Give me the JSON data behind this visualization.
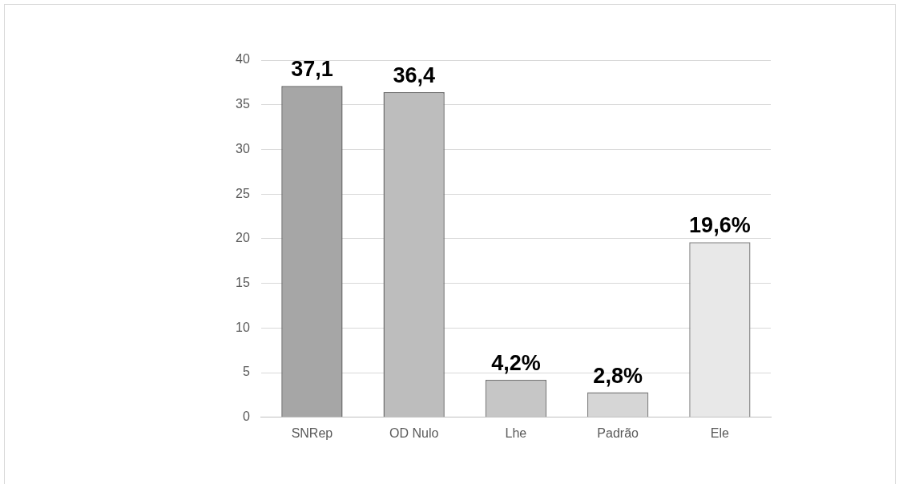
{
  "chart_data": {
    "type": "bar",
    "categories": [
      "SNRep",
      "OD Nulo",
      "Lhe",
      "Padrão",
      "Ele"
    ],
    "values": [
      37.1,
      36.4,
      4.2,
      2.8,
      19.6
    ],
    "colors": [
      "#a6a6a6",
      "#bdbdbd",
      "#c6c6c6",
      "#d6d6d6",
      "#e8e8e8"
    ],
    "value_labels": [
      "37,1",
      "36,4",
      "4,2%",
      "2,8%",
      "19,6%"
    ],
    "ylim": [
      0,
      40
    ],
    "yticks": [
      0,
      5,
      10,
      15,
      20,
      25,
      30,
      35,
      40
    ],
    "grid": "y",
    "legend": false
  }
}
